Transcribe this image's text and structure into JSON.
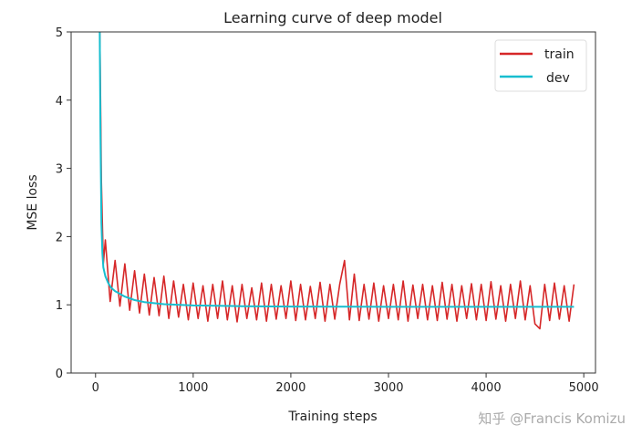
{
  "chart_data": {
    "type": "line",
    "title": "Learning curve of deep model",
    "xlabel": "Training steps",
    "ylabel": "MSE loss",
    "xlim": [
      -250,
      5120
    ],
    "ylim": [
      0,
      5
    ],
    "xticks": [
      0,
      1000,
      2000,
      3000,
      4000,
      5000
    ],
    "yticks": [
      0,
      1,
      2,
      3,
      4,
      5
    ],
    "grid": false,
    "legend_position": "top-right",
    "series": [
      {
        "name": "train",
        "color": "#d62728",
        "x": [
          40,
          60,
          80,
          100,
          150,
          200,
          250,
          300,
          350,
          400,
          450,
          500,
          550,
          600,
          650,
          700,
          750,
          800,
          850,
          900,
          950,
          1000,
          1050,
          1100,
          1150,
          1200,
          1250,
          1300,
          1350,
          1400,
          1450,
          1500,
          1550,
          1600,
          1650,
          1700,
          1750,
          1800,
          1850,
          1900,
          1950,
          2000,
          2050,
          2100,
          2150,
          2200,
          2250,
          2300,
          2350,
          2400,
          2450,
          2500,
          2550,
          2600,
          2650,
          2700,
          2750,
          2800,
          2850,
          2900,
          2950,
          3000,
          3050,
          3100,
          3150,
          3200,
          3250,
          3300,
          3350,
          3400,
          3450,
          3500,
          3550,
          3600,
          3650,
          3700,
          3750,
          3800,
          3850,
          3900,
          3950,
          4000,
          4050,
          4100,
          4150,
          4200,
          4250,
          4300,
          4350,
          4400,
          4450,
          4500,
          4550,
          4600,
          4650,
          4700,
          4750,
          4800,
          4850,
          4900
        ],
        "y": [
          5.5,
          2.8,
          1.6,
          1.95,
          1.05,
          1.65,
          0.98,
          1.6,
          0.92,
          1.5,
          0.88,
          1.45,
          0.85,
          1.4,
          0.84,
          1.42,
          0.8,
          1.35,
          0.82,
          1.3,
          0.78,
          1.32,
          0.8,
          1.28,
          0.76,
          1.3,
          0.8,
          1.35,
          0.78,
          1.28,
          0.75,
          1.3,
          0.8,
          1.25,
          0.78,
          1.32,
          0.76,
          1.3,
          0.79,
          1.28,
          0.8,
          1.35,
          0.77,
          1.3,
          0.78,
          1.27,
          0.8,
          1.33,
          0.76,
          1.3,
          0.79,
          1.3,
          1.65,
          0.78,
          1.45,
          0.77,
          1.3,
          0.79,
          1.32,
          0.76,
          1.28,
          0.8,
          1.3,
          0.78,
          1.35,
          0.76,
          1.29,
          0.8,
          1.3,
          0.78,
          1.28,
          0.77,
          1.33,
          0.79,
          1.3,
          0.76,
          1.28,
          0.8,
          1.31,
          0.78,
          1.3,
          0.77,
          1.34,
          0.79,
          1.28,
          0.76,
          1.3,
          0.8,
          1.35,
          0.78,
          1.28,
          0.72,
          0.65,
          1.3,
          0.77,
          1.32,
          0.79,
          1.28,
          0.76,
          1.3
        ]
      },
      {
        "name": "dev",
        "color": "#17becf",
        "x": [
          40,
          50,
          60,
          70,
          80,
          100,
          130,
          160,
          200,
          300,
          400,
          500,
          700,
          1000,
          1500,
          2000,
          3000,
          4000,
          4900
        ],
        "y": [
          5.5,
          3.6,
          2.2,
          1.75,
          1.55,
          1.42,
          1.32,
          1.25,
          1.2,
          1.12,
          1.07,
          1.04,
          1.01,
          0.99,
          0.98,
          0.975,
          0.97,
          0.97,
          0.97
        ]
      }
    ]
  },
  "watermark": "知乎 @Francis Komizu"
}
